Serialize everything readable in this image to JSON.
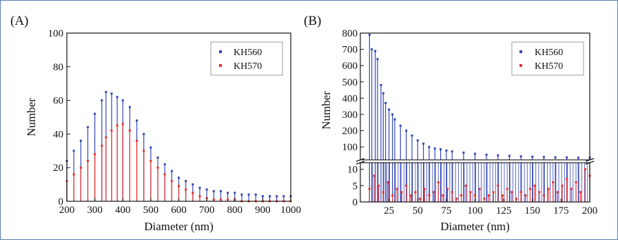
{
  "colors": {
    "KH560": "#3346b8",
    "KH570": "#e8302a",
    "frame": "#5b7bb5"
  },
  "chart_data": [
    {
      "id": "A",
      "panel_label": "(A)",
      "type": "bar",
      "xlabel": "Diameter (nm)",
      "ylabel": "Number",
      "xlim": [
        200,
        1000
      ],
      "ylim": [
        0,
        100
      ],
      "xticks": [
        "200",
        "300",
        "400",
        "500",
        "600",
        "700",
        "800",
        "900",
        "1000"
      ],
      "yticks": [
        "0",
        "20",
        "40",
        "60",
        "80",
        "100"
      ],
      "legend_position": "top-right",
      "series": [
        {
          "name": "KH560",
          "x": [
            200,
            225,
            250,
            275,
            300,
            325,
            340,
            360,
            380,
            400,
            425,
            450,
            475,
            500,
            525,
            550,
            575,
            600,
            625,
            650,
            675,
            700,
            725,
            750,
            775,
            800,
            825,
            850,
            875,
            900,
            925,
            950,
            975,
            1000
          ],
          "y": [
            24,
            30,
            36,
            44,
            52,
            60,
            65,
            64,
            62,
            60,
            56,
            48,
            40,
            32,
            26,
            22,
            18,
            14,
            12,
            10,
            8,
            7,
            6,
            6,
            5,
            5,
            4,
            4,
            4,
            3,
            3,
            3,
            3,
            3
          ]
        },
        {
          "name": "KH570",
          "x": [
            200,
            225,
            250,
            275,
            300,
            325,
            340,
            360,
            380,
            400,
            425,
            450,
            475,
            500,
            525,
            550,
            575,
            600,
            625,
            650,
            675,
            700,
            725,
            750,
            775,
            800,
            825,
            850,
            875,
            900,
            925,
            950,
            975,
            1000
          ],
          "y": [
            12,
            16,
            20,
            24,
            28,
            33,
            38,
            42,
            45,
            46,
            42,
            36,
            30,
            24,
            20,
            16,
            12,
            9,
            7,
            5,
            3,
            2,
            1,
            1,
            1,
            1,
            0,
            0,
            0,
            0,
            0,
            0,
            0,
            0
          ]
        }
      ]
    },
    {
      "id": "B",
      "panel_label": "(B)",
      "type": "bar",
      "xlabel": "Diameter (nm)",
      "ylabel": "Number",
      "xlim": [
        0,
        200
      ],
      "ylim_upper": [
        0,
        800
      ],
      "ylim_lower": [
        0,
        12
      ],
      "broken_axis": true,
      "xticks": [
        "25",
        "50",
        "75",
        "100",
        "125",
        "150",
        "175",
        "200"
      ],
      "yticks_upper": [
        "100",
        "200",
        "300",
        "400",
        "500",
        "600",
        "700",
        "800"
      ],
      "yticks_lower": [
        "0",
        "5",
        "10"
      ],
      "legend_position": "top-right",
      "series": [
        {
          "name": "KH560",
          "x": [
            8,
            10,
            13,
            15,
            18,
            20,
            22,
            25,
            28,
            30,
            35,
            40,
            45,
            50,
            55,
            60,
            65,
            70,
            75,
            80,
            90,
            100,
            110,
            120,
            130,
            140,
            150,
            160,
            170,
            180,
            190,
            200
          ],
          "y": [
            790,
            700,
            690,
            640,
            480,
            430,
            370,
            330,
            300,
            270,
            230,
            200,
            170,
            140,
            120,
            100,
            90,
            85,
            78,
            72,
            65,
            58,
            52,
            48,
            45,
            42,
            40,
            38,
            36,
            35,
            34,
            33
          ]
        },
        {
          "name": "KH570",
          "x": [
            8,
            12,
            16,
            20,
            24,
            28,
            32,
            36,
            40,
            44,
            48,
            52,
            56,
            60,
            64,
            68,
            72,
            76,
            80,
            84,
            88,
            92,
            96,
            100,
            104,
            108,
            112,
            116,
            120,
            124,
            128,
            132,
            136,
            140,
            144,
            148,
            152,
            156,
            160,
            164,
            168,
            172,
            176,
            180,
            184,
            188,
            192,
            196,
            200
          ],
          "y": [
            4,
            8,
            5,
            3,
            6,
            2,
            4,
            3,
            5,
            2,
            3,
            1,
            4,
            2,
            3,
            6,
            2,
            4,
            3,
            1,
            2,
            5,
            3,
            2,
            4,
            1,
            2,
            3,
            5,
            2,
            4,
            3,
            1,
            3,
            2,
            4,
            5,
            3,
            2,
            4,
            6,
            3,
            5,
            7,
            4,
            6,
            3,
            10,
            8
          ]
        }
      ]
    }
  ]
}
